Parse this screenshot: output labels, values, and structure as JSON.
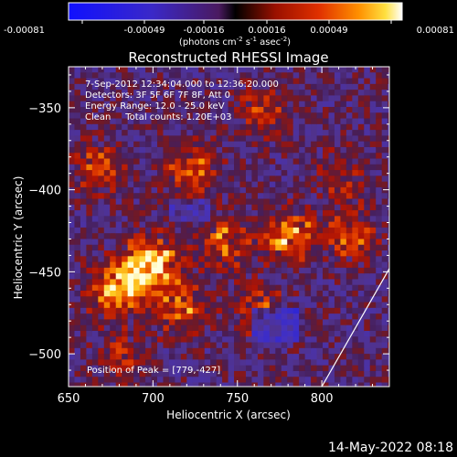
{
  "colorbar": {
    "tick_labels": [
      "-0.00081",
      "-0.00049",
      "-0.00016",
      "0.00016",
      "0.00049",
      "0.00081"
    ],
    "range": [
      -0.00081,
      0.00081
    ]
  },
  "colorbar_units": {
    "prefix": "(photons cm",
    "exp1": "-2",
    "mid1": " s",
    "exp2": "-1",
    "mid2": " asec",
    "exp3": "-2",
    "suffix": ")"
  },
  "info": {
    "line1": "7-Sep-2012 12:34:04.000 to 12:36:20.000",
    "line2": "Detectors: 3F 5F 6F 7F 8F, Att 0",
    "line3": "Energy Range: 12.0 - 25.0 keV",
    "line4": "Clean     Total counts: 1.20E+03",
    "peak": "Position of Peak = [779,-427]"
  },
  "footer_timestamp": "14-May-2022 08:18",
  "chart_data": {
    "type": "heatmap",
    "title": "Reconstructed RHESSI Image",
    "xlabel": "Heliocentric X (arcsec)",
    "ylabel": "Heliocentric Y (arcsec)",
    "xlim": [
      650,
      840
    ],
    "ylim": [
      -520,
      -325
    ],
    "x_ticks": [
      650,
      700,
      750,
      800
    ],
    "y_ticks": [
      -350,
      -400,
      -450,
      -500
    ],
    "grid": false,
    "colormap": "blue-purple-red-yellow-white",
    "peak_position": [
      779,
      -427
    ],
    "bright_regions": [
      {
        "x": 690,
        "y": -450,
        "level": 0.95
      },
      {
        "x": 675,
        "y": -460,
        "level": 0.85
      },
      {
        "x": 715,
        "y": -470,
        "level": 0.8
      },
      {
        "x": 700,
        "y": -440,
        "level": 0.7
      },
      {
        "x": 779,
        "y": -427,
        "level": 1.0
      },
      {
        "x": 740,
        "y": -430,
        "level": 0.75
      },
      {
        "x": 815,
        "y": -425,
        "level": 0.7
      },
      {
        "x": 720,
        "y": -385,
        "level": 0.75
      },
      {
        "x": 665,
        "y": -385,
        "level": 0.6
      },
      {
        "x": 765,
        "y": -350,
        "level": 0.55
      },
      {
        "x": 810,
        "y": -390,
        "level": 0.5
      },
      {
        "x": 760,
        "y": -470,
        "level": 0.6
      },
      {
        "x": 680,
        "y": -500,
        "level": 0.4
      }
    ],
    "limb_line": [
      [
        800,
        -520
      ],
      [
        840,
        -448
      ]
    ]
  }
}
